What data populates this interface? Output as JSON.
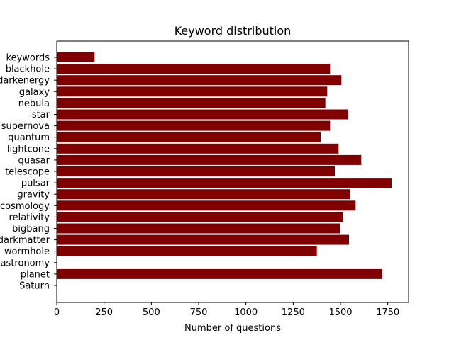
{
  "chart_data": {
    "type": "bar",
    "orientation": "horizontal",
    "title": "Keyword distribution",
    "xlabel": "Number of questions",
    "ylabel": "",
    "xlim": [
      0,
      1860
    ],
    "xticks": [
      0,
      250,
      500,
      750,
      1000,
      1250,
      1500,
      1750
    ],
    "categories": [
      "keywords",
      "blackhole",
      "darkenergy",
      "galaxy",
      "nebula",
      "star",
      "supernova",
      "quantum",
      "lightcone",
      "quasar",
      "telescope",
      "pulsar",
      "gravity",
      "cosmology",
      "relativity",
      "bigbang",
      "darkmatter",
      "wormhole",
      "astronomy",
      "planet",
      "Saturn"
    ],
    "values": [
      200,
      1445,
      1505,
      1430,
      1420,
      1540,
      1445,
      1395,
      1490,
      1610,
      1470,
      1770,
      1550,
      1580,
      1515,
      1500,
      1545,
      1375,
      0,
      1720,
      0
    ],
    "bar_color": "#800000",
    "grid": false,
    "legend": false
  }
}
